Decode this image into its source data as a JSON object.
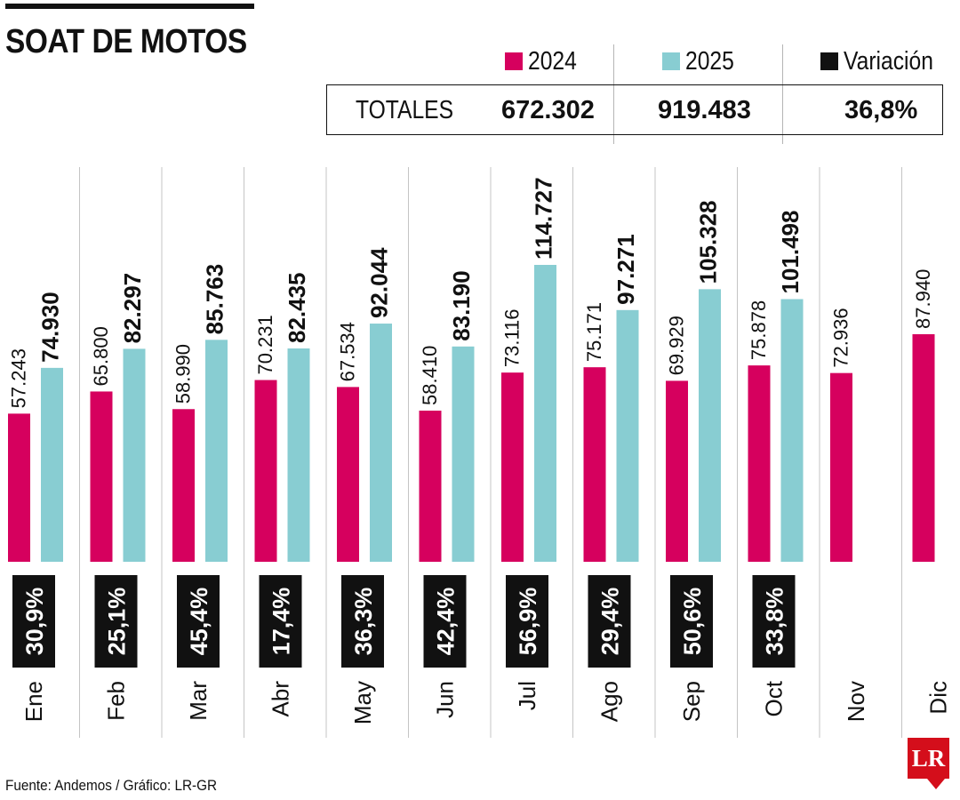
{
  "title": "SOAT DE MOTOS",
  "legend": [
    {
      "label": "2024",
      "color": "#d6005e"
    },
    {
      "label": "2025",
      "color": "#88cdd2"
    },
    {
      "label": "Variación",
      "color": "#111111"
    }
  ],
  "totals": {
    "label": "TOTALES",
    "v2024": "672.302",
    "v2025": "919.483",
    "variation": "36,8%"
  },
  "source": "Fuente: Andemos / Gráfico: LR-GR",
  "logo": "LR",
  "chart_data": {
    "type": "bar",
    "categories": [
      "Ene",
      "Feb",
      "Mar",
      "Abr",
      "May",
      "Jun",
      "Jul",
      "Ago",
      "Sep",
      "Oct",
      "Nov",
      "Dic"
    ],
    "series": [
      {
        "name": "2024",
        "color": "#d6005e",
        "values": [
          57243,
          65800,
          58990,
          70231,
          67534,
          58410,
          73116,
          75171,
          69929,
          75878,
          72936,
          87940
        ],
        "labels": [
          "57.243",
          "65.800",
          "58.990",
          "70.231",
          "67.534",
          "58.410",
          "73.116",
          "75.171",
          "69.929",
          "75.878",
          "72.936",
          "87.940"
        ]
      },
      {
        "name": "2025",
        "color": "#88cdd2",
        "values": [
          74930,
          82297,
          85763,
          82435,
          92044,
          83190,
          114727,
          97271,
          105328,
          101498,
          null,
          null
        ],
        "labels": [
          "74.930",
          "82.297",
          "85.763",
          "82.435",
          "92.044",
          "83.190",
          "114.727",
          "97.271",
          "105.328",
          "101.498",
          "",
          ""
        ]
      }
    ],
    "variation": [
      "30,9%",
      "25,1%",
      "45,4%",
      "17,4%",
      "36,3%",
      "42,4%",
      "56,9%",
      "29,4%",
      "50,6%",
      "33,8%",
      "",
      ""
    ],
    "ylim": [
      0,
      114727
    ],
    "grid": false,
    "legend_position": "top-right"
  }
}
